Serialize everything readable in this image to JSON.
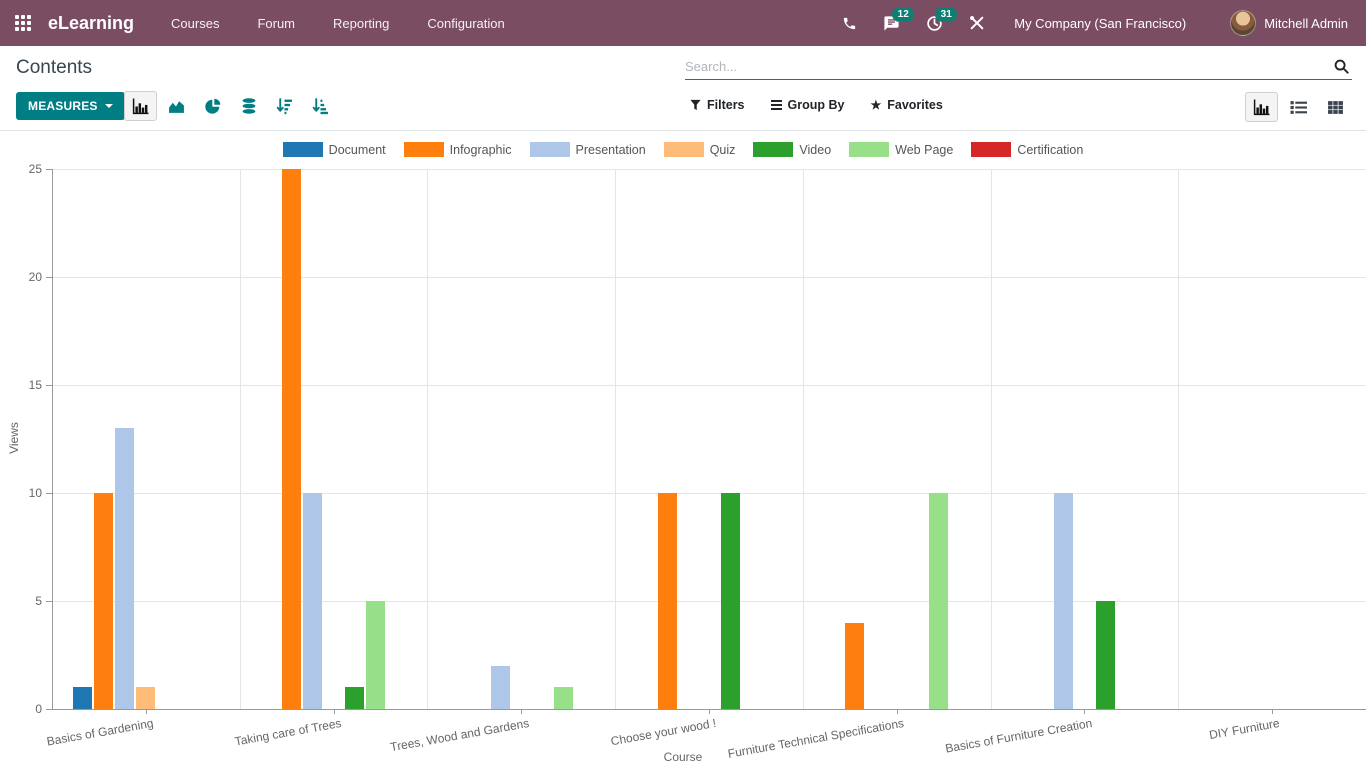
{
  "navbar": {
    "brand": "eLearning",
    "menus": [
      "Courses",
      "Forum",
      "Reporting",
      "Configuration"
    ],
    "systray": {
      "messages_badge": "12",
      "activities_badge": "31",
      "company": "My Company (San Francisco)",
      "user": "Mitchell Admin"
    }
  },
  "control_panel": {
    "title": "Contents",
    "search_placeholder": "Search...",
    "measures_button": "MEASURES",
    "filters": "Filters",
    "group_by": "Group By",
    "favorites": "Favorites"
  },
  "icons": {
    "apps": "grid-3x3",
    "phone": "phone-handset",
    "messages": "speech-bubble",
    "activities": "clock",
    "tools": "crossed-tools",
    "search": "magnifier",
    "measures_caret": "caret-down",
    "filters": "funnel",
    "group_by": "triple-bars",
    "favorites": "star",
    "chart_type_buttons": [
      "bar-chart",
      "area-chart",
      "pie-chart",
      "stacked-bars",
      "sort-descending",
      "sort-ascending"
    ],
    "view_switcher_buttons": [
      "graph-view",
      "list-view",
      "pivot-view"
    ]
  },
  "colors": {
    "navbar_bg": "#7a4d63",
    "badge_bg": "#0f7e74",
    "primary_teal": "#017e84",
    "title_text": "#374650",
    "axis_text": "#666666",
    "gridline": "#e5e5e5"
  },
  "chart_data": {
    "type": "bar",
    "title": "",
    "xlabel": "Course",
    "ylabel": "Views",
    "ylim": [
      0,
      25
    ],
    "yticks": [
      0,
      5,
      10,
      15,
      20,
      25
    ],
    "grid": true,
    "legend_position": "top",
    "categories": [
      "Basics of Gardening",
      "Taking care of Trees",
      "Trees, Wood and Gardens",
      "Choose your wood !",
      "Furniture Technical Specifications",
      "Basics of Furniture Creation",
      "DIY Furniture"
    ],
    "series": [
      {
        "name": "Document",
        "color": "#1f77b4",
        "values": [
          1,
          0,
          0,
          0,
          0,
          0,
          0
        ]
      },
      {
        "name": "Infographic",
        "color": "#ff7f0e",
        "values": [
          10,
          25,
          0,
          10,
          4,
          0,
          0
        ]
      },
      {
        "name": "Presentation",
        "color": "#aec7e8",
        "values": [
          13,
          10,
          2,
          0,
          0,
          10,
          0
        ]
      },
      {
        "name": "Quiz",
        "color": "#ffbb78",
        "values": [
          1,
          0,
          0,
          0,
          0,
          0,
          0
        ]
      },
      {
        "name": "Video",
        "color": "#2ca02c",
        "values": [
          0,
          1,
          0,
          10,
          0,
          5,
          0
        ]
      },
      {
        "name": "Web Page",
        "color": "#98df8a",
        "values": [
          0,
          5,
          1,
          0,
          10,
          0,
          0
        ]
      },
      {
        "name": "Certification",
        "color": "#d62728",
        "values": [
          0,
          0,
          0,
          0,
          0,
          0,
          0
        ]
      }
    ]
  }
}
